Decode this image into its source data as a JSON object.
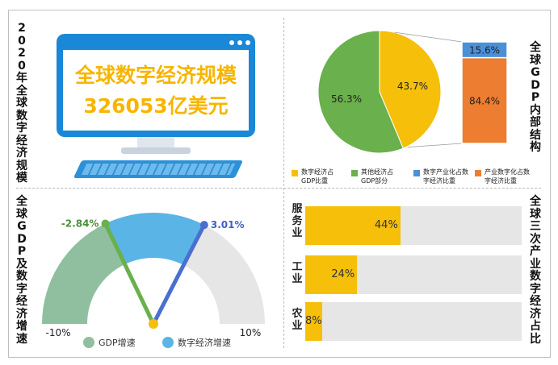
{
  "panel_titles": {
    "top_left": "2020年全球数字经济规模",
    "top_right": "全球GDP内部结构",
    "bottom_left": "全球GDP及数字经济增速",
    "bottom_right": "全球三次产业数字经济占比"
  },
  "monitor": {
    "line1": "全球数字经济规模",
    "line2": "326053亿美元"
  },
  "colors": {
    "yellow": "#f5bf0a",
    "green": "#6ab04c",
    "blue": "#4a90d9",
    "orange": "#ed7d31",
    "gauge_green": "#8fbf9f",
    "gauge_blue": "#5ab4e5",
    "track": "#e6e6e6"
  },
  "chart_data": [
    {
      "type": "pie",
      "labels": [
        "数字经济占GDP比重",
        "其他经济占GDP部分"
      ],
      "values": [
        43.7,
        56.3
      ],
      "value_labels": [
        "43.7%",
        "56.3%"
      ],
      "colors": [
        "#f5bf0a",
        "#6ab04c"
      ]
    },
    {
      "type": "bar",
      "orientation": "stacked-vertical",
      "labels": [
        "数字产业化占数字经济比重",
        "产业数字化占数字经济比重"
      ],
      "values": [
        15.6,
        84.4
      ],
      "value_labels": [
        "15.6%",
        "84.4%"
      ],
      "colors": [
        "#4a90d9",
        "#ed7d31"
      ]
    },
    {
      "type": "gauge",
      "range": [
        -10,
        10
      ],
      "range_labels": [
        "-10%",
        "10%"
      ],
      "series": [
        {
          "name": "GDP增速",
          "value": -2.84,
          "label": "-2.84%",
          "color": "#6ab04c"
        },
        {
          "name": "数字经济增速",
          "value": 3.01,
          "label": "3.01%",
          "color": "#4a6fd0"
        }
      ]
    },
    {
      "type": "bar",
      "orientation": "horizontal",
      "categories": [
        "服务业",
        "工业",
        "农业"
      ],
      "values": [
        44,
        24,
        8
      ],
      "value_labels": [
        "44%",
        "24%",
        "8%"
      ],
      "xlim": [
        0,
        100
      ]
    }
  ]
}
